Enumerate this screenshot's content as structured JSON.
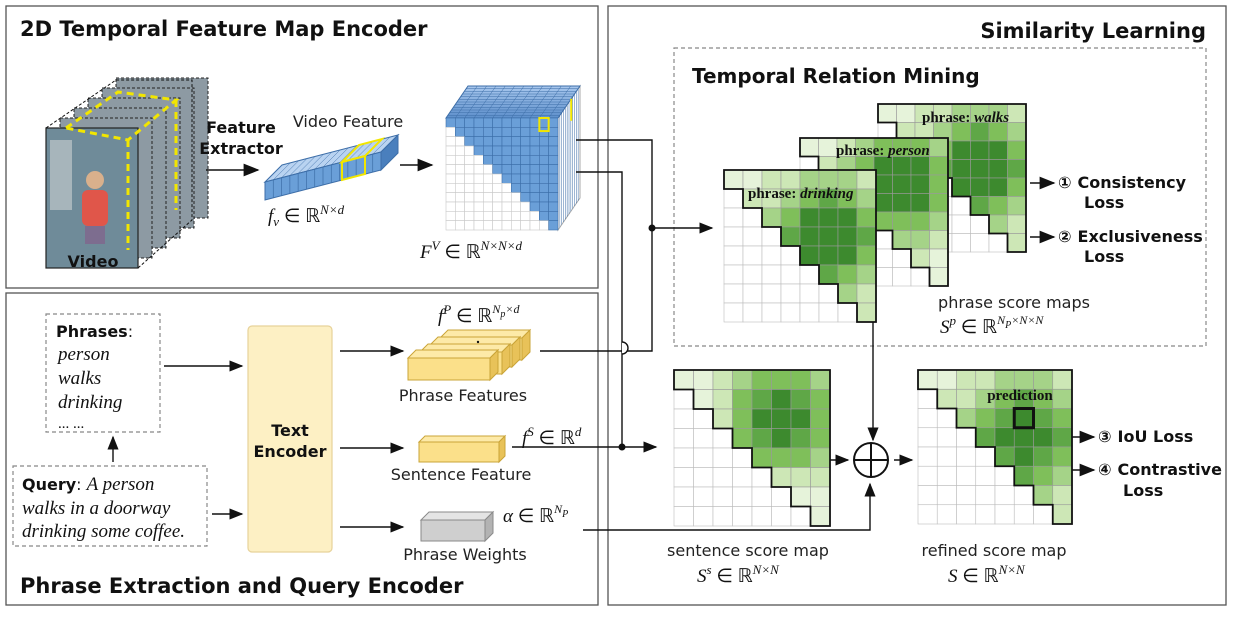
{
  "panels": {
    "video_encoder_title": "2D Temporal Feature Map Encoder",
    "similarity_title": "Similarity Learning",
    "relation_mining_title": "Temporal Relation Mining",
    "query_encoder_title": "Phrase Extraction and Query Encoder"
  },
  "video": {
    "label": "Video",
    "extractor_line1": "Feature",
    "extractor_line2": "Extractor",
    "feature_label": "Video Feature",
    "fv_formula": "f_v ∈ ℝ^{N×d}",
    "FV_formula": "F^V ∈ ℝ^{N×N×d}"
  },
  "query": {
    "phrases_title": "Phrases",
    "phrases": [
      "person",
      "walks",
      "drinking",
      "... ..."
    ],
    "query_title": "Query",
    "query_text": [
      "A person",
      "walks in a doorway",
      "drinking some coffee."
    ],
    "text_encoder_line1": "Text",
    "text_encoder_line2": "Encoder",
    "phrase_features_label": "Phrase Features",
    "fP_formula": "f^P ∈ ℝ^{N_p×d}",
    "sentence_feature_label": "Sentence Feature",
    "fS_formula": "f^S ∈ ℝ^d",
    "phrase_weights_label": "Phrase Weights",
    "alpha_formula": "α ∈ ℝ^{N_P}"
  },
  "score_maps": {
    "phrase_maps": [
      {
        "prefix": "phrase: ",
        "word": "walks"
      },
      {
        "prefix": "phrase: ",
        "word": "person"
      },
      {
        "prefix": "phrase: ",
        "word": "drinking"
      }
    ],
    "phrase_maps_label": "phrase score maps",
    "Sp_formula": "S^p ∈ ℝ^{N_P×N×N}",
    "sentence_map_label": "sentence score map",
    "Ss_formula": "S^s ∈ ℝ^{N×N}",
    "refined_map_label": "refined score map",
    "S_formula": "S ∈ ℝ^{N×N}",
    "prediction_label": "prediction"
  },
  "losses": [
    {
      "num": "①",
      "line1": "Consistency",
      "line2": "Loss"
    },
    {
      "num": "②",
      "line1": "Exclusiveness",
      "line2": "Loss"
    },
    {
      "num": "③",
      "line1": "IoU Loss",
      "line2": ""
    },
    {
      "num": "④",
      "line1": "Contrastive",
      "line2": "Loss"
    }
  ],
  "colors": {
    "green_dark": "#3d8a2e",
    "green_mid": "#7fbf5a",
    "green_light": "#cde7b6",
    "blue_feature": "#6a9fd8",
    "yellow_feature": "#fbe08a",
    "encoder_fill": "#fdf0c4",
    "grey_weights": "#cfcfcf"
  }
}
